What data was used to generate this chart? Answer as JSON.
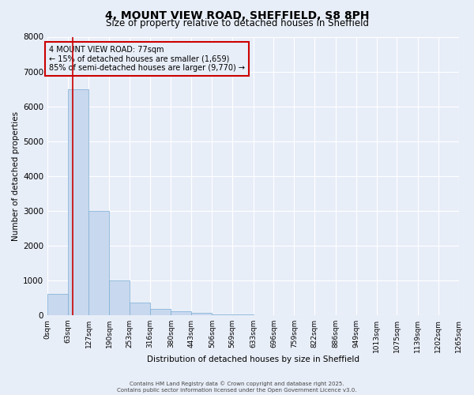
{
  "title": "4, MOUNT VIEW ROAD, SHEFFIELD, S8 8PH",
  "subtitle": "Size of property relative to detached houses in Sheffield",
  "xlabel": "Distribution of detached houses by size in Sheffield",
  "ylabel": "Number of detached properties",
  "bar_color": "#c8d8ee",
  "bar_edge_color": "#7aaed4",
  "background_color": "#e8eef8",
  "grid_color": "#ffffff",
  "bin_edges": [
    0,
    63,
    127,
    190,
    253,
    316,
    380,
    443,
    506,
    569,
    633,
    696,
    759,
    822,
    886,
    949,
    1013,
    1075,
    1139,
    1202,
    1265
  ],
  "bar_heights": [
    600,
    6500,
    3000,
    1000,
    350,
    175,
    100,
    75,
    20,
    10,
    5,
    3,
    2,
    1,
    1,
    0,
    0,
    0,
    0,
    0
  ],
  "ylim": [
    0,
    8000
  ],
  "yticks": [
    0,
    1000,
    2000,
    3000,
    4000,
    5000,
    6000,
    7000,
    8000
  ],
  "property_sqm": 77,
  "red_line_color": "#cc0000",
  "annotation_text": "4 MOUNT VIEW ROAD: 77sqm\n← 15% of detached houses are smaller (1,659)\n85% of semi-detached houses are larger (9,770) →",
  "annotation_box_color": "#cc0000",
  "footer_line1": "Contains HM Land Registry data © Crown copyright and database right 2025.",
  "footer_line2": "Contains public sector information licensed under the Open Government Licence v3.0.",
  "tick_labels": [
    "0sqm",
    "63sqm",
    "127sqm",
    "190sqm",
    "253sqm",
    "316sqm",
    "380sqm",
    "443sqm",
    "506sqm",
    "569sqm",
    "633sqm",
    "696sqm",
    "759sqm",
    "822sqm",
    "886sqm",
    "949sqm",
    "1013sqm",
    "1075sqm",
    "1139sqm",
    "1202sqm",
    "1265sqm"
  ]
}
